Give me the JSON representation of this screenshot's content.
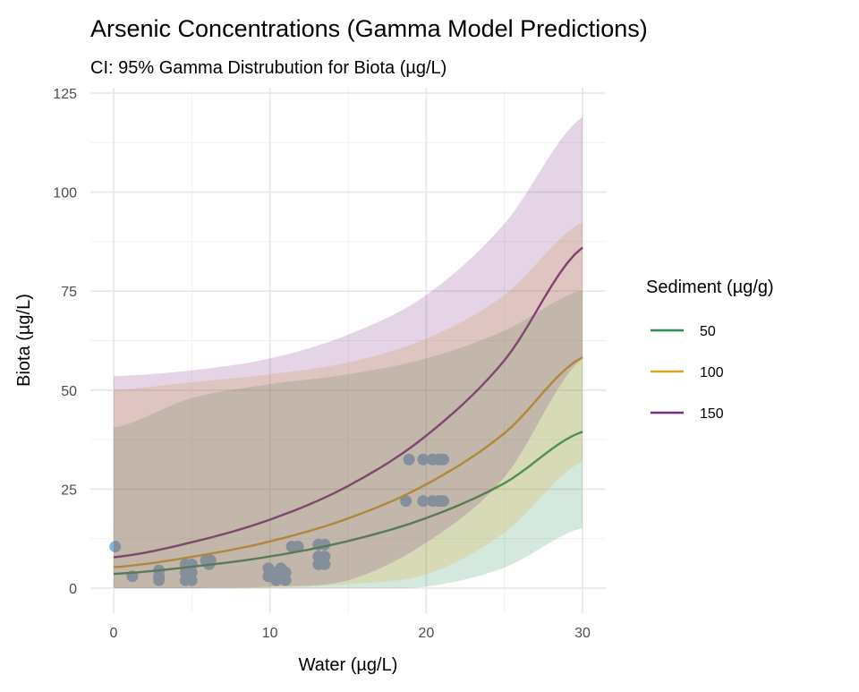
{
  "chart_data": {
    "type": "line",
    "title": "Arsenic Concentrations (Gamma Model Predictions)",
    "subtitle": "CI: 95% Gamma Distrubution for Biota (µg/L)",
    "xlabel": "Water (µg/L)",
    "ylabel": "Biota (µg/L)",
    "xlim": [
      0,
      30
    ],
    "ylim": [
      0,
      125
    ],
    "x_ticks": [
      0,
      10,
      20,
      30
    ],
    "x_tick_labels": [
      "0",
      "10",
      "20",
      "30"
    ],
    "y_ticks": [
      0,
      25,
      50,
      75,
      100,
      125
    ],
    "y_tick_labels": [
      "0",
      "25",
      "50",
      "75",
      "100",
      "125"
    ],
    "grid": true,
    "legend": {
      "title": "Sediment (µg/g)",
      "placement": "right"
    },
    "x": [
      0,
      5,
      10,
      15,
      20,
      25,
      30
    ],
    "series": [
      {
        "name": "50",
        "color": "#2e8b57",
        "values": [
          3.6,
          5.4,
          8.0,
          11.9,
          17.7,
          26.5,
          39.5
        ],
        "lower": [
          0,
          0,
          0,
          0,
          0.4,
          5.2,
          15.2
        ],
        "upper": [
          40.5,
          48,
          51.5,
          54,
          58,
          65,
          75.3
        ]
      },
      {
        "name": "100",
        "color": "#daa520",
        "values": [
          5.3,
          7.9,
          11.8,
          17.6,
          26.2,
          39.1,
          58.3
        ],
        "lower": [
          0,
          0,
          0.1,
          1,
          3.5,
          14,
          32
        ],
        "upper": [
          50,
          52,
          54,
          57,
          63,
          74,
          92.4
        ]
      },
      {
        "name": "150",
        "color": "#762a83",
        "values": [
          7.8,
          11.6,
          17.3,
          25.8,
          38.5,
          57.5,
          86
        ],
        "lower": [
          0,
          0,
          0.4,
          2,
          11.5,
          28,
          58
        ],
        "upper": [
          53.5,
          55,
          58,
          64,
          74,
          92,
          119
        ]
      }
    ],
    "points": {
      "color": "#87b3e0",
      "data": [
        [
          0.1,
          10.5
        ],
        [
          1.2,
          3
        ],
        [
          2.9,
          2
        ],
        [
          2.9,
          3
        ],
        [
          2.9,
          4.5
        ],
        [
          4.6,
          2
        ],
        [
          4.6,
          4
        ],
        [
          4.6,
          6
        ],
        [
          5.0,
          2
        ],
        [
          5.0,
          4
        ],
        [
          5.0,
          6
        ],
        [
          5.9,
          7
        ],
        [
          6.2,
          7
        ],
        [
          6.1,
          6
        ],
        [
          9.9,
          3
        ],
        [
          9.9,
          5
        ],
        [
          10.2,
          4
        ],
        [
          10.4,
          2
        ],
        [
          10.6,
          3
        ],
        [
          10.7,
          5
        ],
        [
          11.0,
          2
        ],
        [
          11.0,
          4
        ],
        [
          11.4,
          10.5
        ],
        [
          11.8,
          10.5
        ],
        [
          13.1,
          6
        ],
        [
          13.1,
          8
        ],
        [
          13.1,
          11
        ],
        [
          13.5,
          6
        ],
        [
          13.5,
          8
        ],
        [
          13.5,
          11
        ],
        [
          18.7,
          22
        ],
        [
          18.9,
          32.5
        ],
        [
          19.8,
          22
        ],
        [
          19.8,
          32.5
        ],
        [
          20.4,
          22
        ],
        [
          20.4,
          32.5
        ],
        [
          20.8,
          22
        ],
        [
          20.8,
          32.5
        ],
        [
          21.1,
          22
        ],
        [
          21.1,
          32.5
        ]
      ]
    }
  }
}
